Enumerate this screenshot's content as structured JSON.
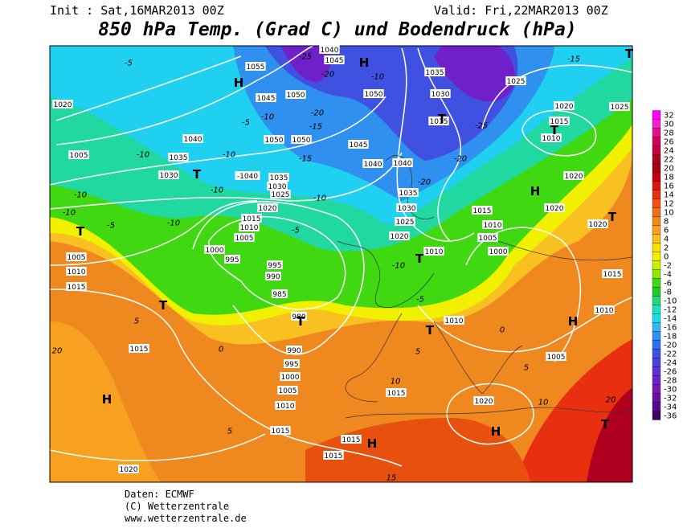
{
  "header": {
    "init": "Init : Sat,16MAR2013 00Z",
    "valid": "Valid: Fri,22MAR2013 00Z",
    "title": "850 hPa Temp. (Grad C) und Bodendruck (hPa)"
  },
  "footer": {
    "source": "Daten: ECMWF",
    "copyright": "(C) Wetterzentrale",
    "url": "www.wetterzentrale.de"
  },
  "legend": {
    "ticks": [
      32,
      30,
      28,
      26,
      24,
      22,
      20,
      18,
      16,
      14,
      12,
      10,
      8,
      6,
      4,
      2,
      0,
      -2,
      -4,
      -6,
      -8,
      -10,
      -12,
      -14,
      -16,
      -18,
      -20,
      -22,
      -24,
      -26,
      -28,
      -30,
      -32,
      -34,
      -36
    ],
    "colors": [
      "#ff00ff",
      "#f020d0",
      "#e01090",
      "#d00060",
      "#c00040",
      "#b00020",
      "#a00018",
      "#c00010",
      "#d81810",
      "#e83010",
      "#f05010",
      "#f07018",
      "#f08820",
      "#f8a020",
      "#f8c020",
      "#f8e000",
      "#f0f000",
      "#c8f000",
      "#90e800",
      "#40d810",
      "#20c830",
      "#20d878",
      "#20e0c0",
      "#20d8f0",
      "#30b8f0",
      "#3090f0",
      "#3070f0",
      "#4050e0",
      "#5040d8",
      "#6030d0",
      "#7020c8",
      "#7818b0",
      "#6810a0",
      "#580890",
      "#400060"
    ]
  },
  "map": {
    "labels": [
      "1055",
      "1045",
      "1040",
      "H",
      "H",
      "-25",
      "-20",
      "-10",
      "1050",
      "1045",
      "1050",
      "-20",
      "-15",
      "-10",
      "-5",
      "1040",
      "1050",
      "1050",
      "-15",
      "1045",
      "1040",
      "1035",
      "1030",
      "T",
      "-1040",
      "1035",
      "1030",
      "1025",
      "-10",
      "1020",
      "1015",
      "1010",
      "1005",
      "-5",
      "1000",
      "995",
      "995",
      "990",
      "985",
      "980",
      "T",
      "990",
      "995",
      "1000",
      "1005",
      "1010",
      "1015",
      "1020",
      "1015",
      "H",
      "T",
      "T",
      "1005",
      "1010",
      "1015",
      "20",
      "1020",
      "-5",
      "1005",
      "-10",
      "-10",
      "-5",
      "-10",
      "-10",
      "-10",
      "-10",
      "1035",
      "1030",
      "1025",
      "1015",
      "T",
      "-25",
      "-20",
      "1020",
      "1015",
      "1010",
      "T",
      "-15",
      "1025",
      "T",
      "1020",
      "H",
      "1020",
      "1020",
      "T",
      "1015",
      "1010",
      "1005",
      "1000",
      "1010",
      "T",
      "-10",
      "1040",
      "1035",
      "1030",
      "1025",
      "1020",
      "-20",
      "1015",
      "1010",
      "H",
      "1005",
      "1010",
      "T",
      "0",
      "-5",
      "5",
      "5",
      "10",
      "1015",
      "1020",
      "H",
      "10",
      "20",
      "T",
      "1015",
      "H",
      "1015",
      "15",
      "5",
      "0",
      "5"
    ]
  }
}
